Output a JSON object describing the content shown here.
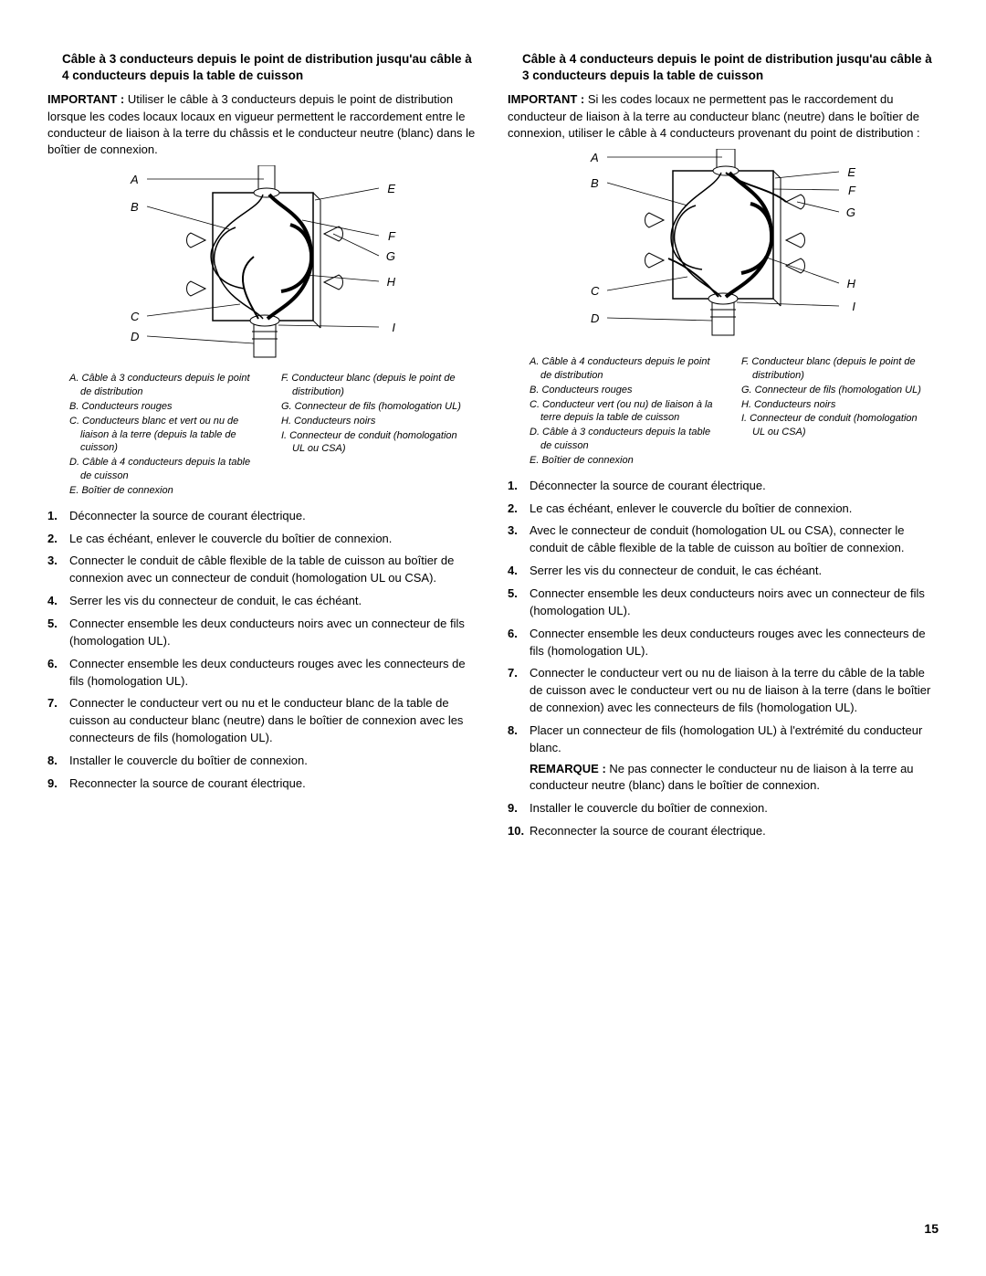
{
  "left": {
    "title": "Câble à 3 conducteurs depuis le point de distribution jusqu'au câble à 4 conducteurs depuis la table de cuisson",
    "important_label": "IMPORTANT :",
    "important": "Utiliser le câble à 3 conducteurs depuis le point de distribution lorsque les codes locaux locaux en vigueur permettent le raccordement entre le conducteur de liaison à la terre du châssis et le conducteur neutre (blanc) dans le boîtier de connexion.",
    "diagram": {
      "labels_left": {
        "A": "A",
        "B": "B",
        "C": "C",
        "D": "D"
      },
      "labels_right": {
        "E": "E",
        "F": "F",
        "G": "G",
        "H": "H",
        "I": "I"
      }
    },
    "legend_left": [
      "A. Câble à 3 conducteurs depuis le point de distribution",
      "B. Conducteurs rouges",
      "C. Conducteurs blanc et vert ou nu de liaison à la terre (depuis la table de cuisson)",
      "D. Câble à 4 conducteurs depuis la table de cuisson",
      "E. Boîtier de connexion"
    ],
    "legend_right": [
      "F. Conducteur blanc (depuis le point de distribution)",
      "G. Connecteur de fils (homologation UL)",
      "H. Conducteurs noirs",
      "I. Connecteur de conduit (homologation UL ou CSA)"
    ],
    "steps": [
      "Déconnecter la source de courant électrique.",
      "Le cas échéant, enlever le couvercle du boîtier de connexion.",
      "Connecter le conduit de câble flexible de la table de cuisson au boîtier de connexion avec un connecteur de conduit (homologation UL ou CSA).",
      "Serrer les vis du connecteur de conduit, le cas échéant.",
      "Connecter ensemble les deux conducteurs noirs avec un connecteur de fils (homologation UL).",
      "Connecter ensemble les deux conducteurs rouges avec les connecteurs de fils (homologation UL).",
      "Connecter le conducteur vert ou nu et le conducteur blanc de la table de cuisson au conducteur blanc (neutre) dans le boîtier de connexion avec les connecteurs de fils (homologation UL).",
      "Installer le couvercle du boîtier de connexion.",
      "Reconnecter la source de courant électrique."
    ]
  },
  "right": {
    "title": "Câble à 4 conducteurs depuis le point de distribution jusqu'au câble à 3 conducteurs depuis la table de cuisson",
    "important_label": "IMPORTANT :",
    "important": "Si les codes locaux ne permettent pas le raccordement du conducteur de liaison à la terre au conducteur blanc (neutre) dans le boîtier de connexion, utiliser le câble à 4 conducteurs provenant du point de distribution :",
    "diagram": {
      "labels_left": {
        "A": "A",
        "B": "B",
        "C": "C",
        "D": "D"
      },
      "labels_right": {
        "E": "E",
        "F": "F",
        "G": "G",
        "H": "H",
        "I": "I"
      }
    },
    "legend_left": [
      "A. Câble à 4 conducteurs depuis le point de distribution",
      "B. Conducteurs rouges",
      "C. Conducteur vert (ou nu) de liaison à la terre depuis la table de cuisson",
      "D. Câble à 3 conducteurs depuis la table de cuisson",
      "E. Boîtier de connexion"
    ],
    "legend_right": [
      "F. Conducteur blanc (depuis le point de distribution)",
      "G. Connecteur de fils (homologation UL)",
      "H. Conducteurs noirs",
      "I. Connecteur de conduit (homologation UL ou CSA)"
    ],
    "steps": [
      "Déconnecter la source de courant électrique.",
      "Le cas échéant, enlever le couvercle du boîtier de connexion.",
      "Avec le connecteur de conduit (homologation UL ou CSA), connecter le conduit de câble flexible de la table de cuisson au boîtier de connexion.",
      "Serrer les vis du connecteur de conduit, le cas échéant.",
      "Connecter ensemble les deux conducteurs noirs avec un connecteur de fils (homologation UL).",
      "Connecter ensemble les deux conducteurs rouges avec les connecteurs de fils (homologation UL).",
      "Connecter le conducteur vert ou nu de liaison à la terre du câble de la table de cuisson avec le conducteur vert ou nu de liaison à la terre (dans le boîtier de connexion) avec les connecteurs de fils (homologation UL).",
      "Placer un connecteur de fils (homologation UL) à l'extrémité du conducteur blanc.",
      "Installer le couvercle du boîtier de connexion.",
      "Reconnecter la source de courant électrique."
    ],
    "remark_label": "REMARQUE :",
    "remark": "Ne pas connecter le conducteur nu de liaison à la terre au conducteur neutre (blanc) dans le boîtier de connexion.",
    "remark_after_step": 8
  },
  "page_number": "15"
}
